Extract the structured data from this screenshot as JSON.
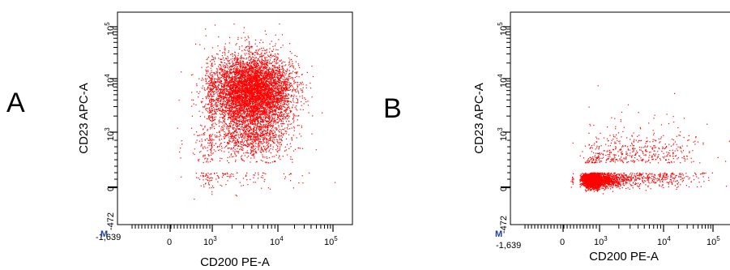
{
  "colors": {
    "points": "#ff0000",
    "axis": "#000000",
    "marker": "#1f3fa6"
  },
  "chart_data": [
    {
      "type": "scatter",
      "panel_label": "A",
      "xlabel": "CD200 PE-A",
      "ylabel": "CD23 APC-A",
      "x_scale": "biexponential",
      "y_scale": "biexponential",
      "xlim": [
        -1639,
        262144
      ],
      "ylim": [
        -472,
        262144
      ],
      "x_ticks": [
        "-1,639",
        "0",
        "10^3",
        "10^4",
        "10^5"
      ],
      "y_ticks": [
        "-472",
        "0",
        "10^3",
        "10^4",
        "10^5"
      ],
      "corner_marker": "M",
      "grid": false,
      "legend": "none",
      "series": [
        {
          "points_description": "dense population",
          "clusters": [
            {
              "x_center_log": 3.6,
              "y_center_log": 3.8,
              "x_spread_log": 0.32,
              "y_spread_log": 0.32,
              "count": 5200
            },
            {
              "x_center_log": 3.6,
              "y_center_log": 3.3,
              "x_spread_log": 0.28,
              "y_spread_log": 0.5,
              "count": 1800
            },
            {
              "x_center_log": 3.2,
              "y_center_log": 2.8,
              "x_spread_log": 0.55,
              "y_spread_log": 0.9,
              "count": 600
            }
          ]
        }
      ]
    },
    {
      "type": "scatter",
      "panel_label": "B",
      "xlabel": "CD200 PE-A",
      "ylabel": "CD23 APC-A",
      "x_scale": "biexponential",
      "y_scale": "biexponential",
      "xlim": [
        -1639,
        262144
      ],
      "ylim": [
        -472,
        262144
      ],
      "x_ticks": [
        "-1,639",
        "0",
        "10^3",
        "10^4",
        "10^5"
      ],
      "y_ticks": [
        "-472",
        "0",
        "10^3",
        "10^4",
        "10^5"
      ],
      "corner_marker": "M",
      "grid": false,
      "legend": "none",
      "series": [
        {
          "points_description": "low population",
          "clusters": [
            {
              "x_center_log": 2.7,
              "y_center_log": 1.4,
              "x_spread_log": 0.28,
              "y_spread_log": 0.28,
              "count": 3800
            },
            {
              "x_center_log": 3.6,
              "y_center_log": 2.0,
              "x_spread_log": 0.55,
              "y_spread_log": 0.55,
              "count": 900
            }
          ]
        }
      ]
    }
  ]
}
